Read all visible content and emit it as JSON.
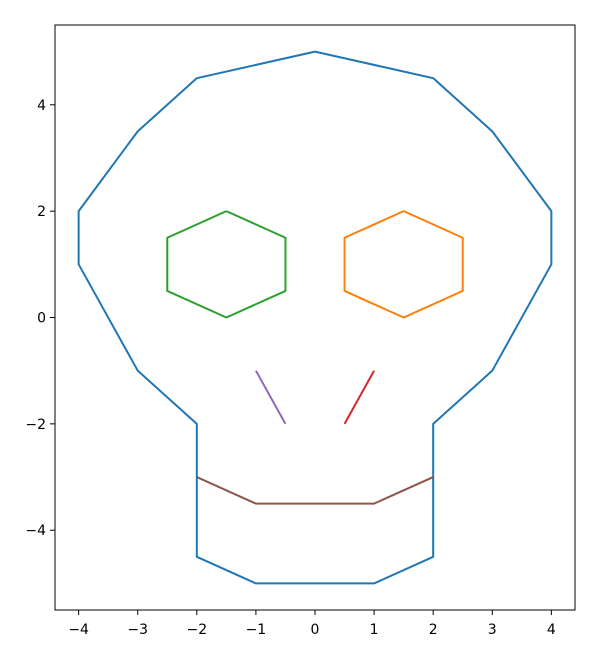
{
  "chart_data": {
    "type": "line",
    "title": "",
    "xlabel": "",
    "ylabel": "",
    "xlim": [
      -4.4,
      4.4
    ],
    "ylim": [
      -5.5,
      5.5
    ],
    "grid": false,
    "legend": "none",
    "xticks": [
      -4,
      -3,
      -2,
      -1,
      0,
      1,
      2,
      3,
      4
    ],
    "yticks": [
      -4,
      -2,
      0,
      2,
      4
    ],
    "xtick_labels": [
      "−4",
      "−3",
      "−2",
      "−1",
      "0",
      "1",
      "2",
      "3",
      "4"
    ],
    "ytick_labels": [
      "−4",
      "−2",
      "0",
      "2",
      "4"
    ],
    "series": [
      {
        "color": "#1f77b4",
        "x": [
          0,
          2,
          3,
          4,
          4,
          3,
          2,
          2,
          1,
          -1,
          -2,
          -2,
          -3,
          -4,
          -4,
          -3,
          -2,
          0
        ],
        "y": [
          5,
          4.5,
          3.5,
          2,
          1,
          -1,
          -2,
          -4.5,
          -5,
          -5,
          -4.5,
          -2,
          -1,
          1,
          2,
          3.5,
          4.5,
          5
        ]
      },
      {
        "color": "#ff7f0e",
        "x": [
          1.5,
          2.5,
          2.5,
          1.5,
          0.5,
          0.5,
          1.5
        ],
        "y": [
          2,
          1.5,
          0.5,
          0,
          0.5,
          1.5,
          2
        ]
      },
      {
        "color": "#2ca02c",
        "x": [
          -1.5,
          -0.5,
          -0.5,
          -1.5,
          -2.5,
          -2.5,
          -1.5
        ],
        "y": [
          2,
          1.5,
          0.5,
          0,
          0.5,
          1.5,
          2
        ]
      },
      {
        "color": "#d62728",
        "x": [
          1,
          0.5
        ],
        "y": [
          -1,
          -2
        ]
      },
      {
        "color": "#9467bd",
        "x": [
          -1,
          -0.5
        ],
        "y": [
          -1,
          -2
        ]
      },
      {
        "color": "#8c564b",
        "x": [
          -2,
          -1,
          1,
          2
        ],
        "y": [
          -3,
          -3.5,
          -3.5,
          -3
        ]
      }
    ]
  }
}
